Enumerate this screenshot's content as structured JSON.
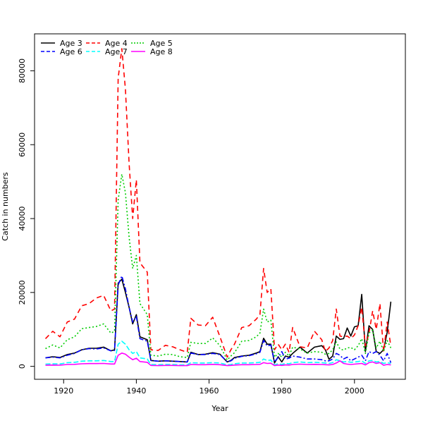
{
  "chart_data": {
    "type": "line",
    "title": "",
    "xlabel": "Year",
    "ylabel": "Catch in numbers",
    "xlim": [
      1912,
      2014
    ],
    "ylim": [
      -3500,
      90000
    ],
    "xticks": [
      1920,
      1940,
      1960,
      1980,
      2000
    ],
    "yticks": [
      0,
      20000,
      40000,
      60000,
      80000
    ],
    "legend_position": "top-left",
    "x": [
      1915,
      1917,
      1919,
      1921,
      1923,
      1925,
      1927,
      1929,
      1931,
      1933,
      1934,
      1935,
      1936,
      1937,
      1938,
      1939,
      1940,
      1941,
      1943,
      1944,
      1946,
      1948,
      1950,
      1952,
      1954,
      1955,
      1957,
      1959,
      1961,
      1963,
      1965,
      1966,
      1967,
      1969,
      1971,
      1973,
      1974,
      1975,
      1976,
      1977,
      1978,
      1979,
      1980,
      1981,
      1982,
      1983,
      1985,
      1987,
      1989,
      1991,
      1992,
      1993,
      1994,
      1995,
      1996,
      1997,
      1998,
      1999,
      2000,
      2001,
      2002,
      2003,
      2004,
      2005,
      2006,
      2007,
      2008,
      2009,
      2010
    ],
    "series": [
      {
        "name": "Age 3",
        "color": "#000000",
        "dash": "solid",
        "values": [
          2300,
          2600,
          2400,
          3200,
          3600,
          4500,
          4900,
          4900,
          5200,
          4200,
          4500,
          22500,
          23600,
          20000,
          16000,
          11500,
          14000,
          8000,
          7200,
          1600,
          1400,
          1500,
          1400,
          1300,
          1200,
          3800,
          3200,
          3300,
          3700,
          3300,
          1200,
          1600,
          2400,
          2800,
          3000,
          3600,
          4000,
          7600,
          6000,
          6000,
          900,
          2600,
          1200,
          2800,
          2500,
          3500,
          5200,
          3600,
          5200,
          5600,
          4500,
          1900,
          2800,
          8200,
          7300,
          7500,
          10400,
          8200,
          10700,
          11000,
          19500,
          4000,
          11000,
          10000,
          4000,
          3500,
          4500,
          9200,
          17500
        ]
      },
      {
        "name": "Age 4",
        "color": "#ff0000",
        "dash": "7,5",
        "values": [
          7500,
          9500,
          8000,
          12000,
          12800,
          16400,
          17000,
          18500,
          19200,
          15000,
          15500,
          78000,
          86000,
          75000,
          55000,
          40000,
          50500,
          28000,
          25500,
          4500,
          4300,
          5700,
          5300,
          4500,
          3800,
          13000,
          11200,
          11000,
          13300,
          8000,
          2500,
          4500,
          6000,
          10500,
          11000,
          12800,
          14000,
          26500,
          20000,
          21000,
          4500,
          6000,
          4500,
          6000,
          3800,
          10500,
          5300,
          5000,
          9500,
          7200,
          4000,
          5000,
          7000,
          15500,
          8200,
          8000,
          8200,
          7500,
          8500,
          11000,
          16000,
          5500,
          9000,
          15000,
          10000,
          17000,
          4000,
          12000,
          5500
        ]
      },
      {
        "name": "Age 5",
        "color": "#00cc00",
        "dash": "2,3",
        "values": [
          4800,
          5800,
          5000,
          7200,
          8000,
          10200,
          10500,
          10800,
          11500,
          9000,
          9500,
          45000,
          52000,
          47000,
          35000,
          26500,
          30000,
          17000,
          14000,
          3000,
          2800,
          3300,
          3200,
          2600,
          2400,
          6500,
          6200,
          6200,
          7700,
          5600,
          1700,
          2800,
          3700,
          6800,
          7000,
          8000,
          9000,
          15500,
          12000,
          12500,
          2500,
          3500,
          2500,
          3800,
          2800,
          5200,
          4700,
          3600,
          4000,
          3800,
          3300,
          3500,
          4500,
          6600,
          4700,
          4400,
          5000,
          5100,
          4500,
          5600,
          7500,
          3500,
          9000,
          9800,
          5000,
          6800,
          4000,
          7000,
          5000
        ]
      },
      {
        "name": "Age 6",
        "color": "#0000ff",
        "dash": "7,3,2,3",
        "values": [
          2300,
          2500,
          2300,
          3000,
          3500,
          4500,
          4800,
          4700,
          5000,
          4200,
          4300,
          22000,
          24500,
          21000,
          16000,
          12000,
          13500,
          7500,
          6800,
          1600,
          1400,
          1500,
          1400,
          1300,
          1200,
          3600,
          3200,
          3200,
          3500,
          3200,
          1200,
          1500,
          2200,
          2700,
          2900,
          3400,
          3800,
          7000,
          5500,
          5800,
          1200,
          2400,
          4000,
          2000,
          2200,
          2800,
          2500,
          2000,
          2000,
          1800,
          1500,
          1500,
          2000,
          3500,
          3000,
          2000,
          2500,
          1500,
          2000,
          2500,
          3000,
          1500,
          4000,
          3500,
          4000,
          3000,
          1500,
          3500,
          1000
        ]
      },
      {
        "name": "Age 7",
        "color": "#00ffff",
        "dash": "7,3",
        "values": [
          600,
          700,
          650,
          1000,
          1100,
          1400,
          1500,
          1500,
          1600,
          1300,
          1300,
          6000,
          6800,
          6000,
          4500,
          3500,
          4000,
          2300,
          2000,
          500,
          450,
          500,
          480,
          420,
          400,
          1000,
          900,
          900,
          1000,
          900,
          400,
          500,
          700,
          900,
          900,
          1000,
          1100,
          2000,
          1600,
          1700,
          400,
          700,
          500,
          800,
          700,
          1000,
          1200,
          1000,
          1100,
          1000,
          900,
          800,
          1000,
          1800,
          1500,
          1200,
          1300,
          1100,
          1200,
          1300,
          1500,
          800,
          1500,
          1600,
          1200,
          1300,
          800,
          1000,
          800
        ]
      },
      {
        "name": "Age 8",
        "color": "#ff00ff",
        "dash": "solid",
        "values": [
          300,
          350,
          320,
          500,
          550,
          700,
          750,
          750,
          800,
          650,
          650,
          3000,
          3600,
          3300,
          2500,
          1800,
          2200,
          1300,
          1100,
          250,
          200,
          250,
          250,
          200,
          200,
          500,
          450,
          450,
          550,
          450,
          200,
          250,
          350,
          450,
          450,
          500,
          550,
          1000,
          800,
          850,
          200,
          350,
          250,
          400,
          350,
          500,
          600,
          500,
          550,
          500,
          450,
          400,
          500,
          900,
          1500,
          800,
          600,
          500,
          600,
          700,
          800,
          400,
          1000,
          1200,
          800,
          1000,
          300,
          500,
          400
        ]
      }
    ]
  }
}
